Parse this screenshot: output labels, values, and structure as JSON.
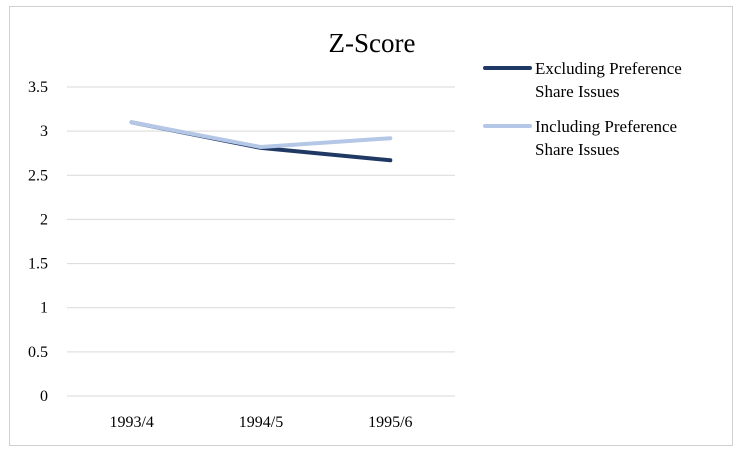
{
  "chart_data": {
    "type": "line",
    "title": "Z-Score",
    "xlabel": "",
    "ylabel": "",
    "categories": [
      "1993/4",
      "1994/5",
      "1995/6"
    ],
    "y_ticks": [
      "0",
      "0.5",
      "1",
      "1.5",
      "2",
      "2.5",
      "3",
      "3.5"
    ],
    "ylim": [
      0,
      3.5
    ],
    "grid": true,
    "legend_position": "right",
    "series": [
      {
        "name": "Excluding Preference Share Issues",
        "name_lines": [
          "Excluding Preference",
          "Share Issues"
        ],
        "values": [
          3.1,
          2.81,
          2.67
        ],
        "color": "#203864"
      },
      {
        "name": "Including Preference Share Issues",
        "name_lines": [
          "Including Preference",
          "Share Issues"
        ],
        "values": [
          3.1,
          2.82,
          2.92
        ],
        "color": "#b4c7e7"
      }
    ]
  }
}
